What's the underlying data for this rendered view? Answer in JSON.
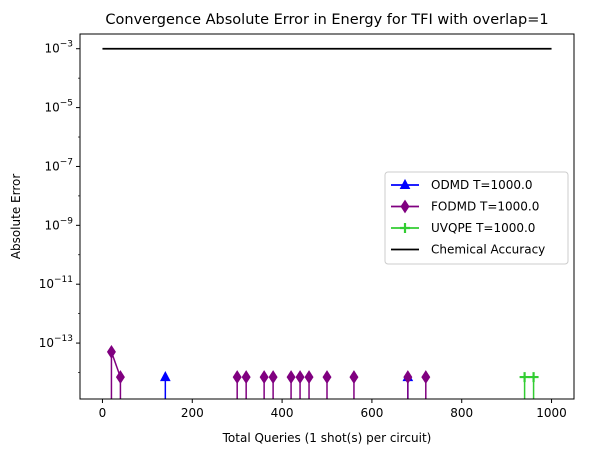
{
  "chart_data": {
    "type": "line",
    "title": "Convergence Absolute Error in Energy for TFI with overlap=1",
    "xlabel": "Total Queries (1 shot(s) per circuit)",
    "ylabel": "Absolute Error",
    "xlim": [
      -50,
      1050
    ],
    "ylim_log10": [
      -14.9,
      -2.5
    ],
    "yscale": "log",
    "x_ticks": [
      "0",
      "200",
      "400",
      "600",
      "800",
      "1000"
    ],
    "y_ticks": [
      {
        "base": "10",
        "exp": "−3"
      },
      {
        "base": "10",
        "exp": "−5"
      },
      {
        "base": "10",
        "exp": "−7"
      },
      {
        "base": "10",
        "exp": "−9"
      },
      {
        "base": "10",
        "exp": "−11"
      },
      {
        "base": "10",
        "exp": "−13"
      }
    ],
    "y_tick_exponents": [
      -3,
      -5,
      -7,
      -9,
      -11,
      -13
    ],
    "legend_position": "center-right",
    "series": [
      {
        "name": "ODMD T=1000.0",
        "color": "#0000ff",
        "marker": "triangle-up",
        "points": [
          {
            "x": 140,
            "y": 7e-15
          },
          {
            "x": 680,
            "y": 7e-15
          }
        ]
      },
      {
        "name": "FODMD T=1000.0",
        "color": "#800080",
        "marker": "diamond",
        "points": [
          {
            "x": 20,
            "y": 5e-14
          },
          {
            "x": 40,
            "y": 7e-15
          },
          {
            "x": 300,
            "y": 7e-15
          },
          {
            "x": 320,
            "y": 7e-15
          },
          {
            "x": 360,
            "y": 7e-15
          },
          {
            "x": 380,
            "y": 7e-15
          },
          {
            "x": 420,
            "y": 7e-15
          },
          {
            "x": 440,
            "y": 7e-15
          },
          {
            "x": 460,
            "y": 7e-15
          },
          {
            "x": 500,
            "y": 7e-15
          },
          {
            "x": 560,
            "y": 7e-15
          },
          {
            "x": 680,
            "y": 7e-15
          },
          {
            "x": 720,
            "y": 7e-15
          }
        ]
      },
      {
        "name": "UVQPE T=1000.0",
        "color": "#32cd32",
        "marker": "plus",
        "points": [
          {
            "x": 940,
            "y": 7e-15
          },
          {
            "x": 960,
            "y": 7e-15
          }
        ]
      },
      {
        "name": "Chemical Accuracy",
        "color": "#000000",
        "marker": "none",
        "points": [
          {
            "x": 0,
            "y": 0.001
          },
          {
            "x": 1000,
            "y": 0.001
          }
        ]
      }
    ]
  }
}
